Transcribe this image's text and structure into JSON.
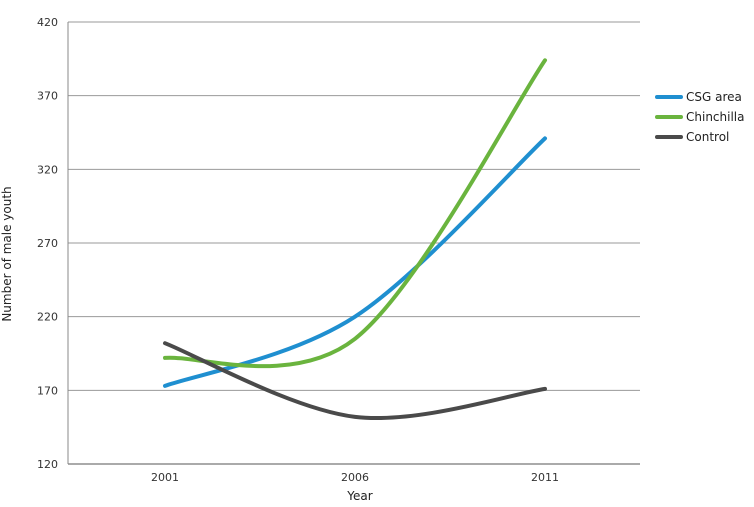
{
  "chart_data": {
    "type": "line",
    "title": "",
    "xlabel": "Year",
    "ylabel": "Number of male youth",
    "x": [
      2001,
      2006,
      2011
    ],
    "x_ticks": [
      "2001",
      "2006",
      "2011"
    ],
    "y_ticks": [
      120,
      170,
      220,
      270,
      320,
      370,
      420
    ],
    "ylim": [
      120,
      420
    ],
    "grid": true,
    "legend_position": "right",
    "series": [
      {
        "name": "CSG area",
        "color": "#1f8fd0",
        "values": [
          173,
          220,
          341
        ]
      },
      {
        "name": "Chinchilla",
        "color": "#6ab43e",
        "values": [
          192,
          205,
          394
        ]
      },
      {
        "name": "Control",
        "color": "#4a4a4a",
        "values": [
          202,
          152,
          171
        ]
      }
    ]
  }
}
